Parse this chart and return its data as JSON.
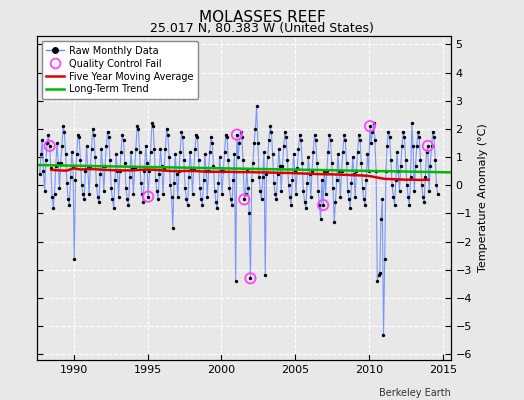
{
  "title": "MOLASSES REEF",
  "subtitle": "25.017 N, 80.383 W (United States)",
  "ylabel": "Temperature Anomaly (°C)",
  "credit": "Berkeley Earth",
  "xlim": [
    1987.5,
    2015.5
  ],
  "ylim": [
    -6.2,
    5.3
  ],
  "yticks": [
    -6,
    -5,
    -4,
    -3,
    -2,
    -1,
    0,
    1,
    2,
    3,
    4,
    5
  ],
  "xticks": [
    1990,
    1995,
    2000,
    2005,
    2010,
    2015
  ],
  "bg_color": "#e8e8e8",
  "grid_color": "#ffffff",
  "raw_line_color": "#6688ff",
  "raw_dot_color": "#000000",
  "ma_color": "#dd0000",
  "trend_color": "#00bb00",
  "qc_color": "#ff44ff",
  "raw_data": [
    [
      1987.708,
      0.4
    ],
    [
      1987.792,
      1.1
    ],
    [
      1987.875,
      1.6
    ],
    [
      1987.958,
      0.5
    ],
    [
      1988.042,
      -0.2
    ],
    [
      1988.125,
      0.9
    ],
    [
      1988.208,
      1.5
    ],
    [
      1988.292,
      1.8
    ],
    [
      1988.375,
      1.4
    ],
    [
      1988.458,
      0.6
    ],
    [
      1988.542,
      -0.4
    ],
    [
      1988.625,
      -0.8
    ],
    [
      1988.708,
      -0.3
    ],
    [
      1988.792,
      0.7
    ],
    [
      1988.875,
      1.5
    ],
    [
      1988.958,
      0.8
    ],
    [
      1989.042,
      -0.1
    ],
    [
      1989.125,
      0.8
    ],
    [
      1989.208,
      1.4
    ],
    [
      1989.292,
      2.1
    ],
    [
      1989.375,
      1.9
    ],
    [
      1989.458,
      1.1
    ],
    [
      1989.542,
      0.1
    ],
    [
      1989.625,
      -0.5
    ],
    [
      1989.708,
      -0.7
    ],
    [
      1989.792,
      0.3
    ],
    [
      1989.875,
      1.2
    ],
    [
      1989.958,
      0.7
    ],
    [
      1990.042,
      -2.6
    ],
    [
      1990.125,
      0.2
    ],
    [
      1990.208,
      1.1
    ],
    [
      1990.292,
      1.8
    ],
    [
      1990.375,
      1.7
    ],
    [
      1990.458,
      0.9
    ],
    [
      1990.542,
      0.0
    ],
    [
      1990.625,
      -0.3
    ],
    [
      1990.708,
      -0.5
    ],
    [
      1990.792,
      0.5
    ],
    [
      1990.875,
      1.4
    ],
    [
      1990.958,
      0.6
    ],
    [
      1991.042,
      -0.3
    ],
    [
      1991.125,
      0.6
    ],
    [
      1991.208,
      1.3
    ],
    [
      1991.292,
      2.0
    ],
    [
      1991.375,
      1.8
    ],
    [
      1991.458,
      1.0
    ],
    [
      1991.542,
      0.0
    ],
    [
      1991.625,
      -0.4
    ],
    [
      1991.708,
      -0.6
    ],
    [
      1991.792,
      0.4
    ],
    [
      1991.875,
      1.3
    ],
    [
      1991.958,
      0.7
    ],
    [
      1992.042,
      -0.2
    ],
    [
      1992.125,
      0.7
    ],
    [
      1992.208,
      1.4
    ],
    [
      1992.292,
      1.9
    ],
    [
      1992.375,
      1.7
    ],
    [
      1992.458,
      0.9
    ],
    [
      1992.542,
      -0.1
    ],
    [
      1992.625,
      -0.5
    ],
    [
      1992.708,
      -0.8
    ],
    [
      1992.792,
      0.2
    ],
    [
      1992.875,
      1.1
    ],
    [
      1992.958,
      0.5
    ],
    [
      1993.042,
      -0.4
    ],
    [
      1993.125,
      0.5
    ],
    [
      1993.208,
      1.2
    ],
    [
      1993.292,
      1.8
    ],
    [
      1993.375,
      1.6
    ],
    [
      1993.458,
      0.8
    ],
    [
      1993.542,
      -0.1
    ],
    [
      1993.625,
      -0.5
    ],
    [
      1993.708,
      -0.7
    ],
    [
      1993.792,
      0.3
    ],
    [
      1993.875,
      1.2
    ],
    [
      1993.958,
      0.6
    ],
    [
      1994.042,
      -0.3
    ],
    [
      1994.125,
      0.6
    ],
    [
      1994.208,
      1.3
    ],
    [
      1994.292,
      2.1
    ],
    [
      1994.375,
      2.0
    ],
    [
      1994.458,
      1.2
    ],
    [
      1994.542,
      0.1
    ],
    [
      1994.625,
      -0.3
    ],
    [
      1994.708,
      -0.6
    ],
    [
      1994.792,
      0.5
    ],
    [
      1994.875,
      1.4
    ],
    [
      1994.958,
      0.8
    ],
    [
      1995.042,
      -0.4
    ],
    [
      1995.125,
      0.5
    ],
    [
      1995.208,
      1.2
    ],
    [
      1995.292,
      2.2
    ],
    [
      1995.375,
      2.1
    ],
    [
      1995.458,
      1.3
    ],
    [
      1995.542,
      0.2
    ],
    [
      1995.625,
      -0.2
    ],
    [
      1995.708,
      -0.5
    ],
    [
      1995.792,
      0.4
    ],
    [
      1995.875,
      1.3
    ],
    [
      1995.958,
      0.7
    ],
    [
      1996.042,
      -0.3
    ],
    [
      1996.125,
      0.6
    ],
    [
      1996.208,
      1.3
    ],
    [
      1996.292,
      2.0
    ],
    [
      1996.375,
      1.8
    ],
    [
      1996.458,
      1.0
    ],
    [
      1996.542,
      0.0
    ],
    [
      1996.625,
      -0.4
    ],
    [
      1996.708,
      -1.5
    ],
    [
      1996.792,
      0.1
    ],
    [
      1996.875,
      1.1
    ],
    [
      1996.958,
      0.4
    ],
    [
      1997.042,
      -0.4
    ],
    [
      1997.125,
      0.5
    ],
    [
      1997.208,
      1.2
    ],
    [
      1997.292,
      1.9
    ],
    [
      1997.375,
      1.7
    ],
    [
      1997.458,
      0.9
    ],
    [
      1997.542,
      -0.1
    ],
    [
      1997.625,
      -0.5
    ],
    [
      1997.708,
      -0.7
    ],
    [
      1997.792,
      0.3
    ],
    [
      1997.875,
      1.2
    ],
    [
      1997.958,
      0.6
    ],
    [
      1998.042,
      -0.3
    ],
    [
      1998.125,
      0.6
    ],
    [
      1998.208,
      1.3
    ],
    [
      1998.292,
      1.8
    ],
    [
      1998.375,
      1.7
    ],
    [
      1998.458,
      0.9
    ],
    [
      1998.542,
      -0.1
    ],
    [
      1998.625,
      -0.5
    ],
    [
      1998.708,
      -0.7
    ],
    [
      1998.792,
      0.2
    ],
    [
      1998.875,
      1.1
    ],
    [
      1998.958,
      0.5
    ],
    [
      1999.042,
      -0.4
    ],
    [
      1999.125,
      0.5
    ],
    [
      1999.208,
      1.2
    ],
    [
      1999.292,
      1.7
    ],
    [
      1999.375,
      1.5
    ],
    [
      1999.458,
      0.7
    ],
    [
      1999.542,
      -0.2
    ],
    [
      1999.625,
      -0.6
    ],
    [
      1999.708,
      -0.8
    ],
    [
      1999.792,
      0.1
    ],
    [
      1999.875,
      1.0
    ],
    [
      1999.958,
      0.5
    ],
    [
      2000.042,
      -0.3
    ],
    [
      2000.125,
      0.5
    ],
    [
      2000.208,
      1.2
    ],
    [
      2000.292,
      1.8
    ],
    [
      2000.375,
      1.7
    ],
    [
      2000.458,
      0.9
    ],
    [
      2000.542,
      -0.1
    ],
    [
      2000.625,
      -0.5
    ],
    [
      2000.708,
      -0.7
    ],
    [
      2000.792,
      0.2
    ],
    [
      2000.875,
      1.1
    ],
    [
      2000.958,
      -3.4
    ],
    [
      2001.042,
      1.8
    ],
    [
      2001.125,
      1.0
    ],
    [
      2001.208,
      1.5
    ],
    [
      2001.292,
      1.9
    ],
    [
      2001.375,
      1.7
    ],
    [
      2001.458,
      0.9
    ],
    [
      2001.542,
      -0.5
    ],
    [
      2001.625,
      -0.3
    ],
    [
      2001.708,
      0.5
    ],
    [
      2001.792,
      -0.1
    ],
    [
      2001.875,
      -1.0
    ],
    [
      2001.958,
      -3.3
    ],
    [
      2002.042,
      0.2
    ],
    [
      2002.125,
      0.8
    ],
    [
      2002.208,
      1.5
    ],
    [
      2002.292,
      2.0
    ],
    [
      2002.375,
      2.8
    ],
    [
      2002.458,
      1.5
    ],
    [
      2002.542,
      0.3
    ],
    [
      2002.625,
      -0.2
    ],
    [
      2002.708,
      -0.5
    ],
    [
      2002.792,
      0.3
    ],
    [
      2002.875,
      1.2
    ],
    [
      2002.958,
      -3.2
    ],
    [
      2003.042,
      0.4
    ],
    [
      2003.125,
      1.0
    ],
    [
      2003.208,
      1.6
    ],
    [
      2003.292,
      2.1
    ],
    [
      2003.375,
      1.9
    ],
    [
      2003.458,
      1.1
    ],
    [
      2003.542,
      0.1
    ],
    [
      2003.625,
      -0.3
    ],
    [
      2003.708,
      -0.5
    ],
    [
      2003.792,
      0.4
    ],
    [
      2003.875,
      1.3
    ],
    [
      2003.958,
      0.7
    ],
    [
      2004.042,
      -0.2
    ],
    [
      2004.125,
      0.7
    ],
    [
      2004.208,
      1.4
    ],
    [
      2004.292,
      1.9
    ],
    [
      2004.375,
      1.7
    ],
    [
      2004.458,
      0.9
    ],
    [
      2004.542,
      0.0
    ],
    [
      2004.625,
      -0.4
    ],
    [
      2004.708,
      -0.7
    ],
    [
      2004.792,
      0.2
    ],
    [
      2004.875,
      1.1
    ],
    [
      2004.958,
      0.5
    ],
    [
      2005.042,
      -0.3
    ],
    [
      2005.125,
      0.6
    ],
    [
      2005.208,
      1.3
    ],
    [
      2005.292,
      1.8
    ],
    [
      2005.375,
      1.6
    ],
    [
      2005.458,
      0.8
    ],
    [
      2005.542,
      -0.2
    ],
    [
      2005.625,
      -0.6
    ],
    [
      2005.708,
      -0.8
    ],
    [
      2005.792,
      0.1
    ],
    [
      2005.875,
      1.0
    ],
    [
      2005.958,
      0.4
    ],
    [
      2006.042,
      -0.4
    ],
    [
      2006.125,
      0.5
    ],
    [
      2006.208,
      1.2
    ],
    [
      2006.292,
      1.8
    ],
    [
      2006.375,
      1.6
    ],
    [
      2006.458,
      0.8
    ],
    [
      2006.542,
      -0.2
    ],
    [
      2006.625,
      -0.7
    ],
    [
      2006.708,
      -1.2
    ],
    [
      2006.792,
      0.2
    ],
    [
      2006.875,
      -0.7
    ],
    [
      2006.958,
      0.5
    ],
    [
      2007.042,
      -0.3
    ],
    [
      2007.125,
      0.5
    ],
    [
      2007.208,
      1.2
    ],
    [
      2007.292,
      1.8
    ],
    [
      2007.375,
      1.6
    ],
    [
      2007.458,
      0.8
    ],
    [
      2007.542,
      -0.1
    ],
    [
      2007.625,
      -1.3
    ],
    [
      2007.708,
      -0.6
    ],
    [
      2007.792,
      0.2
    ],
    [
      2007.875,
      1.1
    ],
    [
      2007.958,
      0.5
    ],
    [
      2008.042,
      -0.4
    ],
    [
      2008.125,
      0.5
    ],
    [
      2008.208,
      1.2
    ],
    [
      2008.292,
      1.8
    ],
    [
      2008.375,
      1.6
    ],
    [
      2008.458,
      0.8
    ],
    [
      2008.542,
      -0.2
    ],
    [
      2008.625,
      -0.5
    ],
    [
      2008.708,
      -0.8
    ],
    [
      2008.792,
      0.1
    ],
    [
      2008.875,
      1.0
    ],
    [
      2008.958,
      0.4
    ],
    [
      2009.042,
      -0.4
    ],
    [
      2009.125,
      0.5
    ],
    [
      2009.208,
      1.2
    ],
    [
      2009.292,
      1.8
    ],
    [
      2009.375,
      1.6
    ],
    [
      2009.458,
      0.8
    ],
    [
      2009.542,
      -0.1
    ],
    [
      2009.625,
      -0.5
    ],
    [
      2009.708,
      -0.7
    ],
    [
      2009.792,
      0.2
    ],
    [
      2009.875,
      1.1
    ],
    [
      2009.958,
      0.5
    ],
    [
      2010.042,
      2.1
    ],
    [
      2010.125,
      1.5
    ],
    [
      2010.208,
      1.9
    ],
    [
      2010.292,
      2.2
    ],
    [
      2010.375,
      1.6
    ],
    [
      2010.458,
      0.5
    ],
    [
      2010.542,
      -3.4
    ],
    [
      2010.625,
      -3.2
    ],
    [
      2010.708,
      -3.1
    ],
    [
      2010.792,
      -1.2
    ],
    [
      2010.875,
      -0.5
    ],
    [
      2010.958,
      -5.3
    ],
    [
      2011.042,
      -2.6
    ],
    [
      2011.125,
      0.5
    ],
    [
      2011.208,
      1.4
    ],
    [
      2011.292,
      1.9
    ],
    [
      2011.375,
      1.7
    ],
    [
      2011.458,
      0.9
    ],
    [
      2011.542,
      0.0
    ],
    [
      2011.625,
      -0.4
    ],
    [
      2011.708,
      -0.7
    ],
    [
      2011.792,
      0.2
    ],
    [
      2011.875,
      1.2
    ],
    [
      2011.958,
      0.5
    ],
    [
      2012.042,
      -0.2
    ],
    [
      2012.125,
      0.7
    ],
    [
      2012.208,
      1.4
    ],
    [
      2012.292,
      1.9
    ],
    [
      2012.375,
      1.7
    ],
    [
      2012.458,
      0.9
    ],
    [
      2012.542,
      0.0
    ],
    [
      2012.625,
      -0.4
    ],
    [
      2012.708,
      -0.7
    ],
    [
      2012.792,
      0.3
    ],
    [
      2012.875,
      2.2
    ],
    [
      2012.958,
      1.4
    ],
    [
      2013.042,
      -0.2
    ],
    [
      2013.125,
      0.7
    ],
    [
      2013.208,
      1.4
    ],
    [
      2013.292,
      1.9
    ],
    [
      2013.375,
      1.7
    ],
    [
      2013.458,
      0.9
    ],
    [
      2013.542,
      0.0
    ],
    [
      2013.625,
      -0.4
    ],
    [
      2013.708,
      -0.6
    ],
    [
      2013.792,
      0.3
    ],
    [
      2013.875,
      1.2
    ],
    [
      2013.958,
      1.4
    ],
    [
      2014.042,
      -0.2
    ],
    [
      2014.125,
      0.7
    ],
    [
      2014.208,
      1.4
    ],
    [
      2014.292,
      1.9
    ],
    [
      2014.375,
      1.7
    ],
    [
      2014.458,
      0.9
    ],
    [
      2014.542,
      0.0
    ],
    [
      2014.625,
      -0.3
    ]
  ],
  "qc_fail_points": [
    [
      1988.375,
      1.4
    ],
    [
      1995.042,
      -0.4
    ],
    [
      2001.042,
      1.8
    ],
    [
      2001.542,
      -0.5
    ],
    [
      2001.958,
      -3.3
    ],
    [
      2006.875,
      -0.7
    ],
    [
      2010.042,
      2.1
    ],
    [
      2013.958,
      1.4
    ]
  ],
  "moving_avg": [
    [
      1988.5,
      0.55
    ],
    [
      1989.0,
      0.53
    ],
    [
      1989.5,
      0.52
    ],
    [
      1990.0,
      0.6
    ],
    [
      1990.5,
      0.56
    ],
    [
      1991.0,
      0.58
    ],
    [
      1991.5,
      0.57
    ],
    [
      1992.0,
      0.55
    ],
    [
      1992.5,
      0.54
    ],
    [
      1993.0,
      0.53
    ],
    [
      1993.5,
      0.53
    ],
    [
      1994.0,
      0.53
    ],
    [
      1994.5,
      0.55
    ],
    [
      1995.0,
      0.56
    ],
    [
      1995.5,
      0.55
    ],
    [
      1996.0,
      0.53
    ],
    [
      1996.5,
      0.51
    ],
    [
      1997.0,
      0.5
    ],
    [
      1997.5,
      0.51
    ],
    [
      1998.0,
      0.51
    ],
    [
      1998.5,
      0.5
    ],
    [
      1999.0,
      0.48
    ],
    [
      1999.5,
      0.48
    ],
    [
      2000.0,
      0.48
    ],
    [
      2000.5,
      0.48
    ],
    [
      2001.0,
      0.47
    ],
    [
      2001.5,
      0.47
    ],
    [
      2002.0,
      0.47
    ],
    [
      2002.5,
      0.46
    ],
    [
      2003.0,
      0.46
    ],
    [
      2003.5,
      0.45
    ],
    [
      2004.0,
      0.44
    ],
    [
      2004.5,
      0.44
    ],
    [
      2005.0,
      0.43
    ],
    [
      2005.5,
      0.42
    ],
    [
      2006.0,
      0.41
    ],
    [
      2006.5,
      0.4
    ],
    [
      2007.0,
      0.39
    ],
    [
      2007.5,
      0.39
    ],
    [
      2008.0,
      0.38
    ],
    [
      2008.5,
      0.37
    ],
    [
      2009.0,
      0.36
    ],
    [
      2009.5,
      0.35
    ],
    [
      2010.0,
      0.33
    ],
    [
      2010.5,
      0.28
    ],
    [
      2011.0,
      0.23
    ],
    [
      2011.5,
      0.22
    ],
    [
      2012.0,
      0.21
    ],
    [
      2012.5,
      0.2
    ],
    [
      2013.0,
      0.2
    ],
    [
      2013.5,
      0.19
    ],
    [
      2014.0,
      0.2
    ]
  ],
  "trend_x": [
    1987.5,
    2015.5
  ],
  "trend_y": [
    0.72,
    0.46
  ],
  "title_fontsize": 11,
  "subtitle_fontsize": 9,
  "tick_fontsize": 8,
  "ylabel_fontsize": 8
}
